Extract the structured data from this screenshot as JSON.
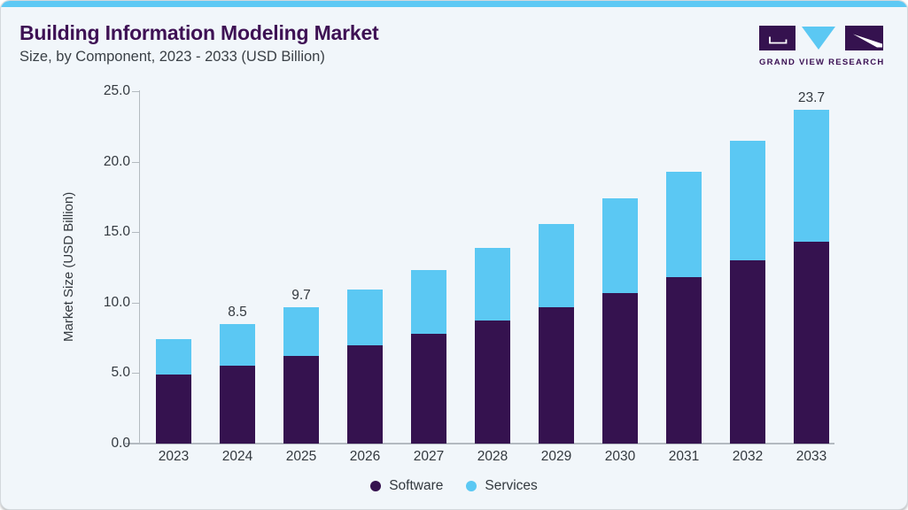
{
  "header": {
    "title": "Building Information Modeling Market",
    "subtitle": "Size, by Component, 2023 - 2033 (USD Billion)"
  },
  "logo": {
    "text": "GRAND VIEW RESEARCH",
    "icon": "gvr-logo-icon",
    "purple": "#35124f",
    "blue": "#5bc8f3"
  },
  "chart_data": {
    "type": "bar",
    "stacked": true,
    "title": "Building Information Modeling Market Size, by Component, 2023 - 2033 (USD Billion)",
    "categories": [
      "2023",
      "2024",
      "2025",
      "2026",
      "2027",
      "2028",
      "2029",
      "2030",
      "2031",
      "2032",
      "2033"
    ],
    "series": [
      {
        "name": "Software",
        "color": "#35124f",
        "values": [
          4.9,
          5.5,
          6.2,
          7.0,
          7.8,
          8.7,
          9.7,
          10.7,
          11.8,
          13.0,
          14.3
        ]
      },
      {
        "name": "Services",
        "color": "#5bc8f3",
        "values": [
          2.5,
          3.0,
          3.5,
          3.9,
          4.5,
          5.2,
          5.9,
          6.7,
          7.5,
          8.5,
          9.4
        ]
      }
    ],
    "totals": [
      7.4,
      8.5,
      9.7,
      10.9,
      12.3,
      13.9,
      15.6,
      17.4,
      19.3,
      21.5,
      23.7
    ],
    "bar_labels": {
      "2024": "8.5",
      "2025": "9.7",
      "2033": "23.7"
    },
    "ylabel": "Market Size (USD Billion)",
    "ylim": [
      0,
      25
    ],
    "ytick_step": 5,
    "yticks": [
      "0.0",
      "5.0",
      "10.0",
      "15.0",
      "20.0",
      "25.0"
    ],
    "grid": false,
    "legend_position": "bottom-center"
  },
  "colors": {
    "card_background": "#f1f6fa",
    "top_bar": "#5ec9f4",
    "title_text": "#3e1154",
    "body_text": "#33393f",
    "axis": "#b3bac0"
  }
}
